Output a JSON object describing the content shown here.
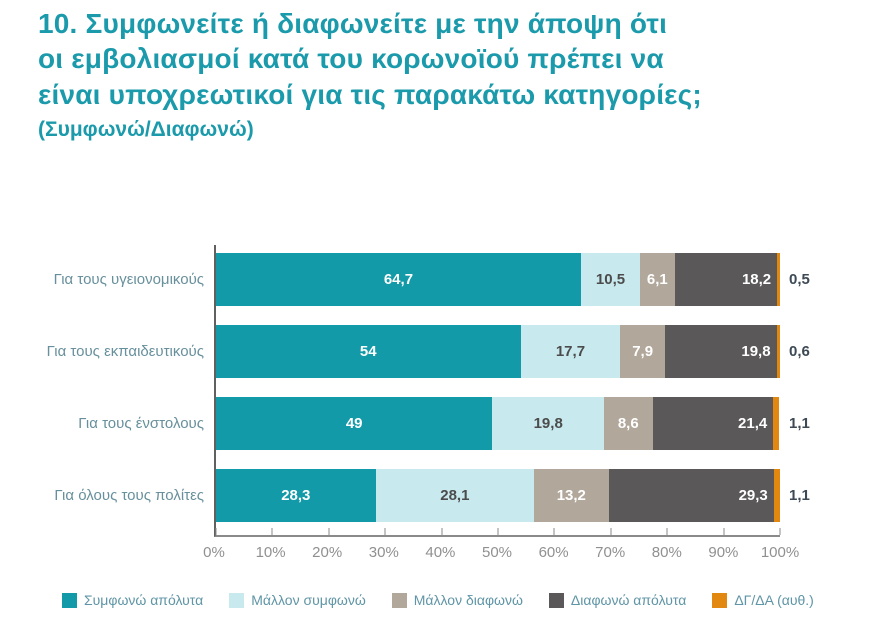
{
  "title": {
    "line1": "10. Συμφωνείτε ή διαφωνείτε με την άποψη ότι",
    "line2": "οι εμβολιασμοί κατά του κορωνοϊού πρέπει να",
    "line3": "είναι υποχρεωτικοί για τις παρακάτω κατηγορίες;",
    "subtitle": "(Συμφωνώ/Διαφωνώ)"
  },
  "chart_data": {
    "type": "bar",
    "orientation": "horizontal",
    "stacked": true,
    "grid": false,
    "legend_position": "bottom",
    "categories": [
      "Για τους υγειονομικούς",
      "Για τους εκπαιδευτικούς",
      "Για τους ένστολους",
      "Για όλους τους πολίτες"
    ],
    "series": [
      {
        "name": "Συμφωνώ απόλυτα",
        "color": "#129aa8",
        "text_color": "#ffffff",
        "label_align": "center",
        "values": [
          64.7,
          54,
          49,
          28.3
        ],
        "labels": [
          "64,7",
          "54",
          "49",
          "28,3"
        ]
      },
      {
        "name": "Μάλλον συμφωνώ",
        "color": "#c8e9ed",
        "text_color": "#4c4c4c",
        "label_align": "center",
        "values": [
          10.5,
          17.7,
          19.8,
          28.1
        ],
        "labels": [
          "10,5",
          "17,7",
          "19,8",
          "28,1"
        ]
      },
      {
        "name": "Μάλλον διαφωνώ",
        "color": "#b1a79a",
        "text_color": "#ffffff",
        "label_align": "center",
        "values": [
          6.1,
          7.9,
          8.6,
          13.2
        ],
        "labels": [
          "6,1",
          "7,9",
          "8,6",
          "13,2"
        ]
      },
      {
        "name": "Διαφωνώ απόλυτα",
        "color": "#5a5858",
        "text_color": "#ffffff",
        "label_align": "right",
        "values": [
          18.2,
          19.8,
          21.4,
          29.3
        ],
        "labels": [
          "18,2",
          "19,8",
          "21,4",
          "29,3"
        ]
      },
      {
        "name": "ΔΓ/ΔΑ (αυθ.)",
        "color": "#e2870f",
        "text_color": "#3d4a55",
        "label_outside": true,
        "values": [
          0.5,
          0.6,
          1.1,
          1.1
        ],
        "labels": [
          "0,5",
          "0,6",
          "1,1",
          "1,1"
        ]
      }
    ],
    "x_axis": {
      "min": 0,
      "max": 100,
      "tick_step": 10,
      "ticks": [
        "0%",
        "10%",
        "20%",
        "30%",
        "40%",
        "50%",
        "60%",
        "70%",
        "80%",
        "90%",
        "100%"
      ]
    }
  }
}
